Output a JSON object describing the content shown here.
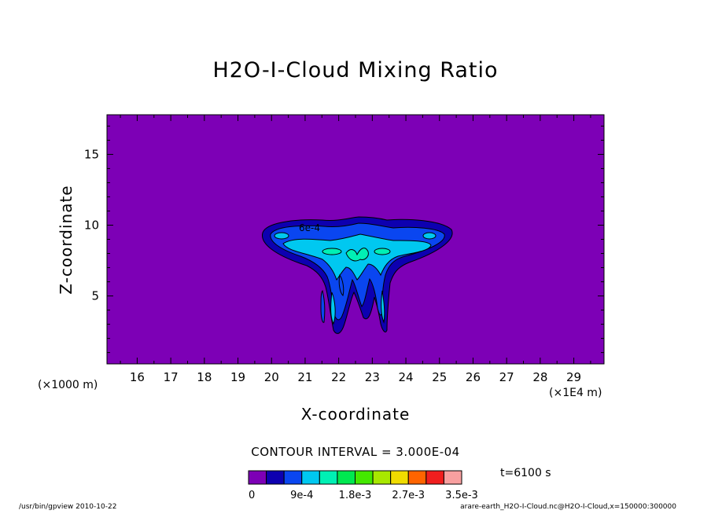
{
  "chart_data": {
    "type": "contour",
    "title": "H2O-I-Cloud Mixing Ratio",
    "xlabel": "X-coordinate",
    "ylabel": "Z-coordinate",
    "x_unit_left": "(×1000 m)",
    "x_unit_right": "(×1E4 m)",
    "xlim": [
      15.1,
      29.9
    ],
    "ylim": [
      0.2,
      17.8
    ],
    "x_ticks": [
      16,
      17,
      18,
      19,
      20,
      21,
      22,
      23,
      24,
      25,
      26,
      27,
      28,
      29
    ],
    "y_ticks": [
      5,
      10,
      15
    ],
    "contour_interval_label": "CONTOUR INTERVAL = 3.000E-04",
    "time_label": "t=6100 s",
    "colorbar": {
      "colors": [
        "#7d00b6",
        "#0d00b0",
        "#0a46f0",
        "#00c8f0",
        "#00f0b4",
        "#00e850",
        "#44e800",
        "#a8e800",
        "#f0dc00",
        "#ff6400",
        "#f01e1e",
        "#f8a0a0"
      ],
      "labels": [
        "0",
        "9e-4",
        "1.8e-3",
        "2.7e-3",
        "3.5e-3"
      ]
    },
    "contour_labels": [
      "6e-4"
    ],
    "footer_left": "/usr/bin/gpview   2010-10-22",
    "footer_right": "arare-earth_H2O-I-Cloud.nc@H2O-I-Cloud,x=150000:300000"
  }
}
